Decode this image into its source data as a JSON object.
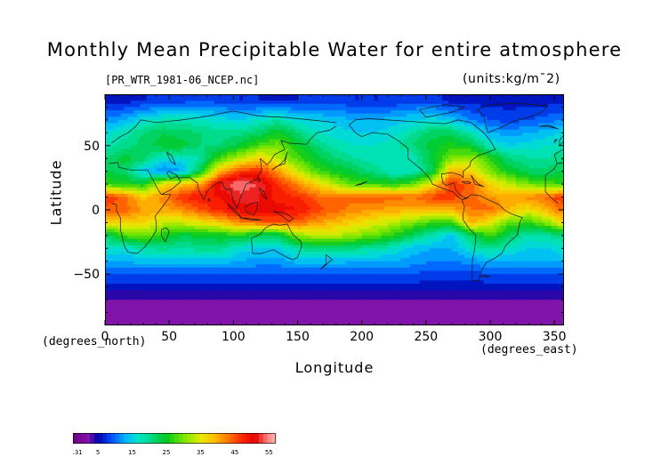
{
  "chart_data": {
    "type": "heatmap",
    "title": "Monthly Mean Precipitable Water for entire atmosphere",
    "file_label": "[PR_WTR_1981-06_NCEP.nc]",
    "units": "(units:kg/m¯2)",
    "xlabel": "Longitude",
    "ylabel": "Latitude",
    "x_units": "(degrees_east)",
    "y_units": "(degrees_north)",
    "xlim": [
      0,
      357.5
    ],
    "ylim": [
      -90,
      90
    ],
    "x_ticks": [
      0,
      50,
      100,
      150,
      200,
      250,
      300,
      350
    ],
    "y_ticks": [
      50,
      0,
      -50
    ],
    "colorbar": {
      "min": -2.31,
      "max": 57,
      "tick_labels": [
        "-2.31",
        "5",
        "15",
        "25",
        "35",
        "45",
        "55"
      ],
      "tick_values": [
        -2.31,
        5,
        15,
        25,
        35,
        45,
        55
      ]
    },
    "grid_lon": [
      0,
      15,
      30,
      45,
      60,
      75,
      90,
      105,
      120,
      135,
      150,
      165,
      180,
      195,
      210,
      225,
      240,
      255,
      270,
      285,
      300,
      315,
      330,
      345,
      357.5
    ],
    "grid_lat": [
      85,
      70,
      60,
      50,
      40,
      30,
      20,
      10,
      0,
      -10,
      -20,
      -30,
      -40,
      -50,
      -60,
      -70,
      -85
    ],
    "values": [
      [
        6,
        6,
        7,
        7,
        8,
        9,
        8,
        7,
        7,
        6,
        7,
        8,
        8,
        7,
        7,
        7,
        8,
        8,
        6,
        6,
        6,
        6,
        6,
        6,
        6
      ],
      [
        11,
        13,
        16,
        18,
        18,
        17,
        16,
        15,
        17,
        19,
        16,
        15,
        14,
        13,
        13,
        14,
        15,
        16,
        14,
        11,
        9,
        8,
        9,
        10,
        11
      ],
      [
        16,
        18,
        21,
        23,
        22,
        21,
        20,
        20,
        22,
        25,
        21,
        17,
        16,
        15,
        15,
        16,
        19,
        22,
        22,
        18,
        13,
        12,
        13,
        14,
        16
      ],
      [
        18,
        20,
        22,
        24,
        24,
        21,
        21,
        24,
        28,
        30,
        25,
        21,
        18,
        17,
        17,
        18,
        21,
        24,
        26,
        24,
        17,
        15,
        16,
        17,
        18
      ],
      [
        21,
        24,
        22,
        16,
        16,
        19,
        28,
        33,
        37,
        33,
        28,
        24,
        21,
        19,
        18,
        17,
        18,
        24,
        30,
        32,
        27,
        21,
        19,
        19,
        21
      ],
      [
        23,
        22,
        14,
        11,
        13,
        24,
        40,
        46,
        47,
        41,
        34,
        28,
        25,
        23,
        20,
        17,
        17,
        23,
        40,
        37,
        30,
        25,
        22,
        22,
        23
      ],
      [
        27,
        26,
        25,
        36,
        38,
        41,
        52,
        55,
        53,
        47,
        42,
        37,
        32,
        28,
        27,
        26,
        29,
        36,
        47,
        44,
        37,
        33,
        30,
        28,
        27
      ],
      [
        47,
        44,
        38,
        42,
        47,
        49,
        49,
        52,
        51,
        48,
        47,
        44,
        43,
        44,
        45,
        44,
        43,
        46,
        46,
        44,
        41,
        40,
        42,
        44,
        47
      ],
      [
        44,
        44,
        41,
        40,
        42,
        45,
        48,
        50,
        51,
        50,
        49,
        46,
        44,
        42,
        41,
        40,
        40,
        39,
        40,
        43,
        44,
        39,
        36,
        40,
        44
      ],
      [
        37,
        38,
        37,
        34,
        34,
        36,
        38,
        42,
        44,
        45,
        44,
        41,
        39,
        37,
        35,
        33,
        30,
        27,
        27,
        40,
        35,
        29,
        27,
        31,
        37
      ],
      [
        21,
        28,
        30,
        26,
        23,
        24,
        25,
        26,
        22,
        22,
        31,
        33,
        33,
        31,
        29,
        26,
        22,
        18,
        14,
        22,
        28,
        22,
        18,
        19,
        21
      ],
      [
        17,
        16,
        19,
        20,
        19,
        20,
        20,
        16,
        15,
        15,
        19,
        21,
        21,
        20,
        19,
        17,
        14,
        13,
        13,
        17,
        20,
        17,
        15,
        15,
        17
      ],
      [
        13,
        13,
        14,
        14,
        14,
        14,
        14,
        13,
        12,
        12,
        14,
        14,
        14,
        13,
        13,
        13,
        12,
        11,
        11,
        12,
        13,
        13,
        13,
        13,
        13
      ],
      [
        9,
        9,
        9,
        9,
        9,
        9,
        9,
        9,
        9,
        9,
        9,
        9,
        9,
        9,
        9,
        9,
        9,
        8,
        8,
        8,
        9,
        9,
        9,
        9,
        9
      ],
      [
        6,
        6,
        6,
        6,
        6,
        6,
        6,
        6,
        6,
        6,
        6,
        6,
        6,
        6,
        6,
        6,
        6,
        6,
        6,
        6,
        6,
        6,
        6,
        6,
        6
      ],
      [
        3,
        3,
        3,
        3,
        3,
        3,
        3,
        3,
        3,
        3,
        3,
        3,
        3,
        3,
        3,
        3,
        3,
        3,
        3,
        3,
        3,
        3,
        3,
        3,
        3
      ],
      [
        1,
        1,
        1,
        1,
        1,
        1,
        1,
        1,
        1,
        1,
        1,
        1,
        1,
        1,
        1,
        1,
        1,
        1,
        1,
        1,
        1,
        1,
        1,
        1,
        1
      ]
    ],
    "grid": false,
    "legend_placement": "bottom-left"
  }
}
